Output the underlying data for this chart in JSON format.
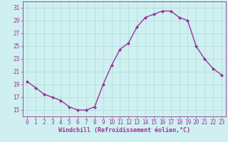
{
  "x": [
    0,
    1,
    2,
    3,
    4,
    5,
    6,
    7,
    8,
    9,
    10,
    11,
    12,
    13,
    14,
    15,
    16,
    17,
    18,
    19,
    20,
    21,
    22,
    23
  ],
  "y": [
    19.5,
    18.5,
    17.5,
    17.0,
    16.5,
    15.5,
    15.0,
    15.0,
    15.5,
    19.0,
    22.0,
    24.5,
    25.5,
    28.0,
    29.5,
    30.0,
    30.5,
    30.5,
    29.5,
    29.0,
    25.0,
    23.0,
    21.5,
    20.5
  ],
  "line_color": "#993399",
  "marker": "D",
  "marker_size": 2.0,
  "bg_color": "#cff0f0",
  "grid_color": "#aadddd",
  "xlabel": "Windchill (Refroidissement éolien,°C)",
  "xlabel_color": "#993399",
  "tick_color": "#993399",
  "ylim": [
    14,
    32
  ],
  "yticks": [
    15,
    17,
    19,
    21,
    23,
    25,
    27,
    29,
    31
  ],
  "xlim": [
    -0.5,
    23.5
  ],
  "xticks": [
    0,
    1,
    2,
    3,
    4,
    5,
    6,
    7,
    8,
    9,
    10,
    11,
    12,
    13,
    14,
    15,
    16,
    17,
    18,
    19,
    20,
    21,
    22,
    23
  ],
  "linewidth": 1.0,
  "tick_fontsize": 5.5,
  "xlabel_fontsize": 6.0
}
